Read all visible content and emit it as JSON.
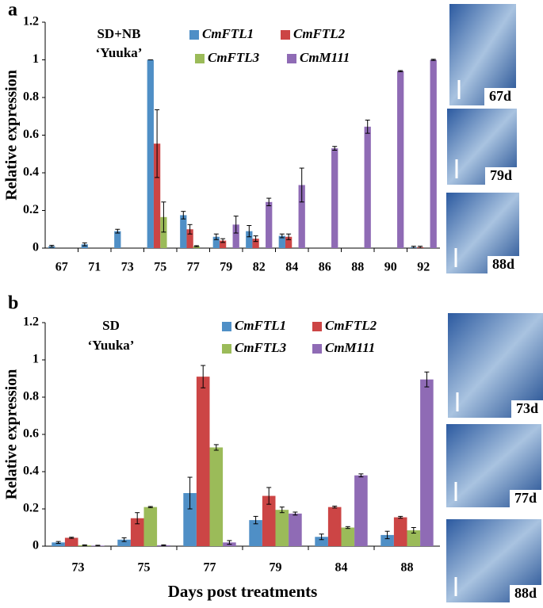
{
  "chart_data": [
    {
      "type": "bar",
      "panel": "a",
      "ylabel": "Relative expression",
      "annotations": [
        "SD+NB",
        "‘Yuuka’"
      ],
      "images": [
        "67d",
        "79d",
        "88d"
      ],
      "categories": [
        "67",
        "71",
        "73",
        "75",
        "77",
        "79",
        "82",
        "84",
        "86",
        "88",
        "90",
        "92"
      ],
      "ylim": [
        0,
        1.2
      ],
      "yticks": [
        0,
        0.2,
        0.4,
        0.6,
        0.8,
        1,
        1.2
      ],
      "series": [
        {
          "name": "CmFTL1",
          "color": "#4f8fc6",
          "values": [
            0.01,
            0.02,
            0.09,
            1.0,
            0.175,
            0.06,
            0.09,
            0.065,
            0,
            0,
            0,
            0.005
          ],
          "errors": [
            0.005,
            0.008,
            0.01,
            0,
            0.02,
            0.015,
            0.03,
            0.01,
            0,
            0,
            0,
            0.005
          ]
        },
        {
          "name": "CmFTL2",
          "color": "#cc4545",
          "values": [
            0,
            0,
            0,
            0.555,
            0.1,
            0.04,
            0.05,
            0.06,
            0,
            0,
            0,
            0.005
          ],
          "errors": [
            0,
            0,
            0,
            0.18,
            0.025,
            0.01,
            0.015,
            0.015,
            0,
            0,
            0,
            0.005
          ]
        },
        {
          "name": "CmFTL3",
          "color": "#9bbb59",
          "values": [
            0,
            0,
            0,
            0.165,
            0.01,
            0,
            0,
            0,
            0,
            0,
            0,
            0
          ],
          "errors": [
            0,
            0,
            0,
            0.08,
            0.003,
            0,
            0,
            0,
            0,
            0,
            0,
            0
          ]
        },
        {
          "name": "CmM111",
          "color": "#8f6bb5",
          "values": [
            0,
            0,
            0,
            0,
            0,
            0.125,
            0.245,
            0.335,
            0.53,
            0.645,
            0.94,
            1.0
          ],
          "errors": [
            0,
            0,
            0,
            0,
            0,
            0.045,
            0.02,
            0.09,
            0.01,
            0.035,
            0.003,
            0.003
          ]
        }
      ]
    },
    {
      "type": "bar",
      "panel": "b",
      "ylabel": "Relative expression",
      "xlabel": "Days post treatments",
      "annotations": [
        "SD",
        "‘Yuuka’"
      ],
      "images": [
        "73d",
        "77d",
        "88d"
      ],
      "categories": [
        "73",
        "75",
        "77",
        "79",
        "84",
        "88"
      ],
      "ylim": [
        0,
        1.2
      ],
      "yticks": [
        0,
        0.2,
        0.4,
        0.6,
        0.8,
        1,
        1.2
      ],
      "series": [
        {
          "name": "CmFTL1",
          "color": "#4f8fc6",
          "values": [
            0.02,
            0.035,
            0.285,
            0.14,
            0.05,
            0.06
          ],
          "errors": [
            0.005,
            0.01,
            0.085,
            0.02,
            0.015,
            0.02
          ]
        },
        {
          "name": "CmFTL2",
          "color": "#cc4545",
          "values": [
            0.045,
            0.15,
            0.91,
            0.27,
            0.21,
            0.155
          ],
          "errors": [
            0.003,
            0.03,
            0.06,
            0.045,
            0.005,
            0.005
          ]
        },
        {
          "name": "CmFTL3",
          "color": "#9bbb59",
          "values": [
            0.005,
            0.21,
            0.53,
            0.195,
            0.1,
            0.085
          ],
          "errors": [
            0.002,
            0.003,
            0.015,
            0.015,
            0.005,
            0.015
          ]
        },
        {
          "name": "CmM111",
          "color": "#8f6bb5",
          "values": [
            0.003,
            0.005,
            0.02,
            0.175,
            0.38,
            0.895
          ],
          "errors": [
            0.002,
            0.002,
            0.01,
            0.008,
            0.008,
            0.04
          ]
        }
      ]
    }
  ]
}
